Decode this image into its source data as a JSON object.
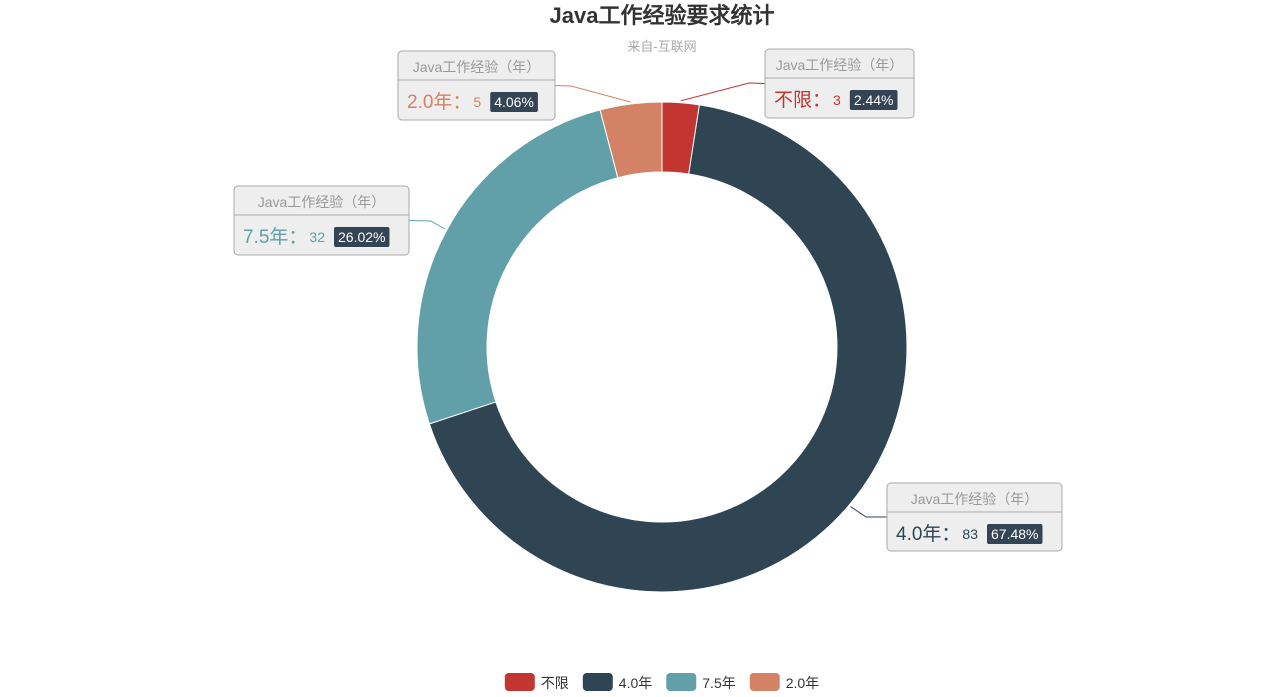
{
  "chart_data": {
    "type": "pie",
    "variant": "donut",
    "title": "Java工作经验要求统计",
    "subtitle": "来自-互联网",
    "series_label": "Java工作经验（年）",
    "slices": [
      {
        "name": "不限",
        "value": 3,
        "percent": "2.44%",
        "color": "#c23531"
      },
      {
        "name": "4.0年",
        "value": 83,
        "percent": "67.48%",
        "color": "#2f4554"
      },
      {
        "name": "7.5年",
        "value": 32,
        "percent": "26.02%",
        "color": "#61a0a8"
      },
      {
        "name": "2.0年",
        "value": 5,
        "percent": "4.06%",
        "color": "#d48265"
      }
    ],
    "legend_position": "bottom-center",
    "percent_badge_color": "#334455"
  }
}
